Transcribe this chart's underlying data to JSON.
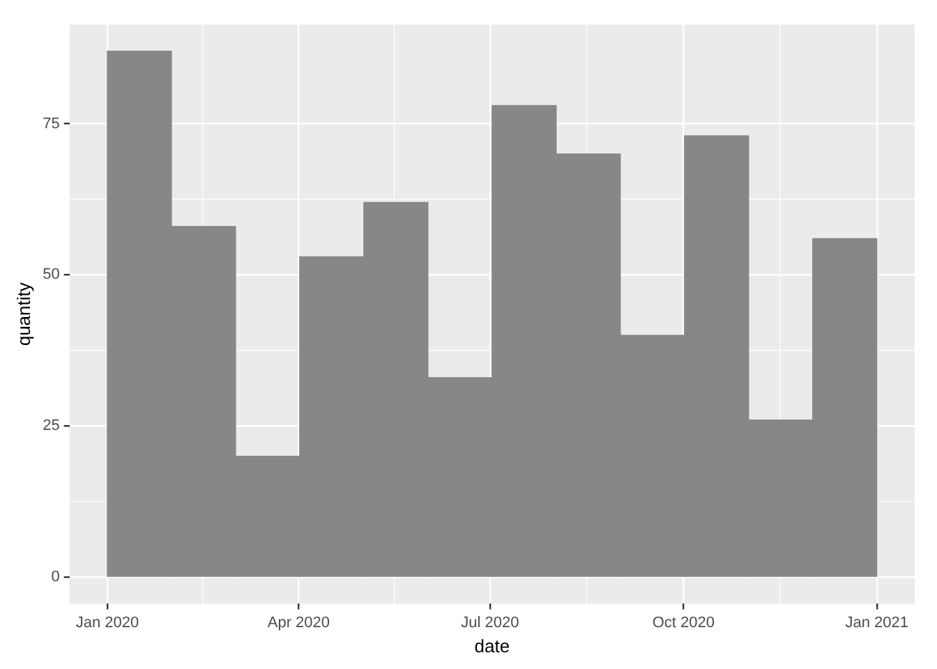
{
  "chart_data": {
    "type": "histogram",
    "xlabel": "date",
    "ylabel": "quantity",
    "bins": [
      "2020-01-01",
      "2020-01-31T12:00",
      "2020-03-02",
      "2020-04-01T12:00",
      "2020-05-02",
      "2020-06-01T12:00",
      "2020-07-02",
      "2020-08-01T12:00",
      "2020-09-01",
      "2020-10-01T12:00",
      "2020-11-01",
      "2020-12-01T12:00",
      "2021-01-01"
    ],
    "values": [
      87,
      58,
      20,
      53,
      62,
      33,
      78,
      70,
      40,
      73,
      26,
      56
    ],
    "color": "#878787",
    "xlim": [
      "2019-12-14",
      "2021-01-19"
    ],
    "xticks": [
      {
        "value": "2020-01-01",
        "label": "Jan 2020"
      },
      {
        "value": "2020-04-01",
        "label": "Apr 2020"
      },
      {
        "value": "2020-07-01",
        "label": "Jul 2020"
      },
      {
        "value": "2020-10-01",
        "label": "Oct 2020"
      },
      {
        "value": "2021-01-01",
        "label": "Jan 2021"
      }
    ],
    "ylim": [
      -4.4,
      91.4
    ],
    "yticks": [
      0,
      25,
      50,
      75
    ],
    "grid": true
  }
}
